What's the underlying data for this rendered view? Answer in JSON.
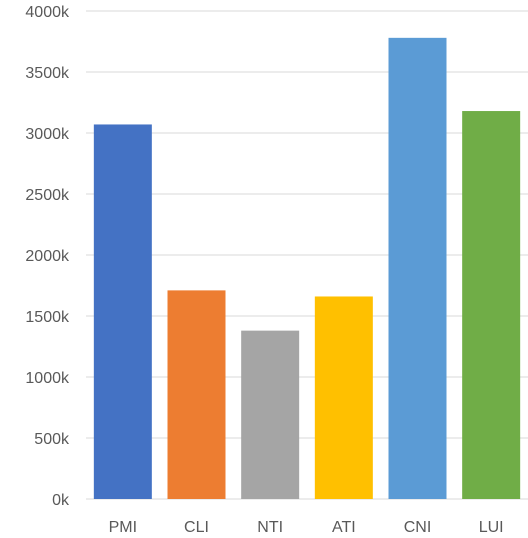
{
  "chart_data": {
    "type": "bar",
    "categories": [
      "PMI",
      "CLI",
      "NTI",
      "ATI",
      "CNI",
      "LUI"
    ],
    "values": [
      3070,
      1710,
      1380,
      1660,
      3780,
      3180
    ],
    "colors": [
      "#4472c4",
      "#ed7d31",
      "#a5a5a5",
      "#ffc000",
      "#5b9bd5",
      "#70ad47"
    ],
    "ylim": [
      0,
      4000
    ],
    "yticks": [
      0,
      500,
      1000,
      1500,
      2000,
      2500,
      3000,
      3500,
      4000
    ],
    "ytick_labels": [
      "0k",
      "500k",
      "1000k",
      "1500k",
      "2000k",
      "2500k",
      "3000k",
      "3500k",
      "4000k"
    ],
    "grid": true,
    "legend": "none",
    "title": "",
    "xlabel": "",
    "ylabel": ""
  }
}
